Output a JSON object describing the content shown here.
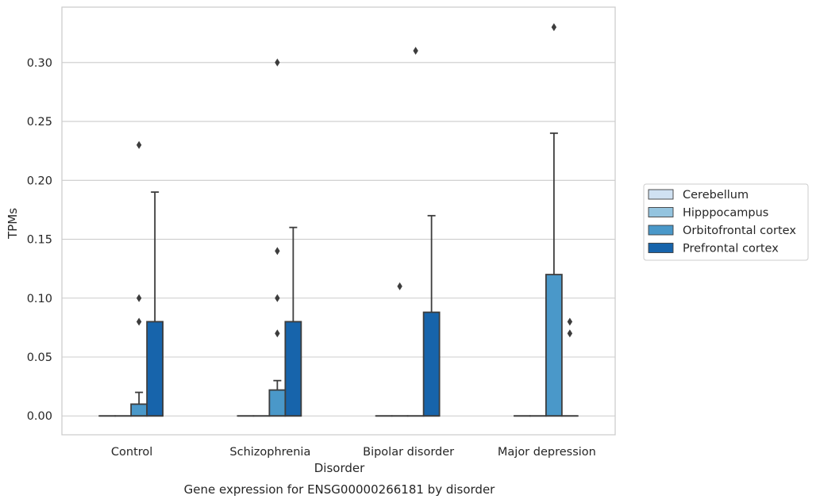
{
  "chart_data": {
    "type": "box",
    "title": "Gene expression for ENSG00000266181 by disorder",
    "xlabel": "Disorder",
    "ylabel": "TPMs",
    "ylim": [
      -0.016,
      0.347
    ],
    "yticks": [
      "0.00",
      "0.05",
      "0.10",
      "0.15",
      "0.20",
      "0.25",
      "0.30"
    ],
    "categories": [
      "Control",
      "Schizophrenia",
      "Bipolar disorder",
      "Major depression"
    ],
    "grid": "horizontal",
    "legend_placement": "right",
    "series": [
      {
        "name": "Cerebellum",
        "color": "#d0e1f2",
        "boxes": [
          {
            "min": 0,
            "q1": 0,
            "median": 0,
            "q3": 0,
            "max": 0,
            "outliers": []
          },
          {
            "min": 0,
            "q1": 0,
            "median": 0,
            "q3": 0,
            "max": 0,
            "outliers": []
          },
          {
            "min": 0,
            "q1": 0,
            "median": 0,
            "q3": 0,
            "max": 0,
            "outliers": []
          },
          {
            "min": 0,
            "q1": 0,
            "median": 0,
            "q3": 0,
            "max": 0,
            "outliers": []
          }
        ]
      },
      {
        "name": "Hipppocampus",
        "color": "#94c4df",
        "boxes": [
          {
            "min": 0,
            "q1": 0,
            "median": 0,
            "q3": 0,
            "max": 0,
            "outliers": []
          },
          {
            "min": 0,
            "q1": 0,
            "median": 0,
            "q3": 0,
            "max": 0,
            "outliers": []
          },
          {
            "min": 0,
            "q1": 0,
            "median": 0,
            "q3": 0,
            "max": 0,
            "outliers": [
              0.11
            ]
          },
          {
            "min": 0,
            "q1": 0,
            "median": 0,
            "q3": 0,
            "max": 0,
            "outliers": []
          }
        ]
      },
      {
        "name": "Orbitofrontal cortex",
        "color": "#4a98c9",
        "boxes": [
          {
            "min": 0,
            "q1": 0,
            "median": 0,
            "q3": 0.01,
            "max": 0.02,
            "outliers": [
              0.08,
              0.1,
              0.23
            ]
          },
          {
            "min": 0,
            "q1": 0,
            "median": 0,
            "q3": 0.022,
            "max": 0.03,
            "outliers": [
              0.07,
              0.1,
              0.14,
              0.3
            ]
          },
          {
            "min": 0,
            "q1": 0,
            "median": 0,
            "q3": 0,
            "max": 0,
            "outliers": [
              0.31
            ]
          },
          {
            "min": 0,
            "q1": 0,
            "median": 0,
            "q3": 0.12,
            "max": 0.24,
            "outliers": [
              0.33
            ]
          }
        ]
      },
      {
        "name": "Prefrontal cortex",
        "color": "#1764ab",
        "boxes": [
          {
            "min": 0,
            "q1": 0,
            "median": 0,
            "q3": 0.08,
            "max": 0.19,
            "outliers": []
          },
          {
            "min": 0,
            "q1": 0,
            "median": 0,
            "q3": 0.08,
            "max": 0.16,
            "outliers": []
          },
          {
            "min": 0,
            "q1": 0,
            "median": 0,
            "q3": 0.088,
            "max": 0.17,
            "outliers": []
          },
          {
            "min": 0,
            "q1": 0,
            "median": 0,
            "q3": 0,
            "max": 0,
            "outliers": [
              0.07,
              0.08
            ]
          }
        ]
      }
    ]
  }
}
